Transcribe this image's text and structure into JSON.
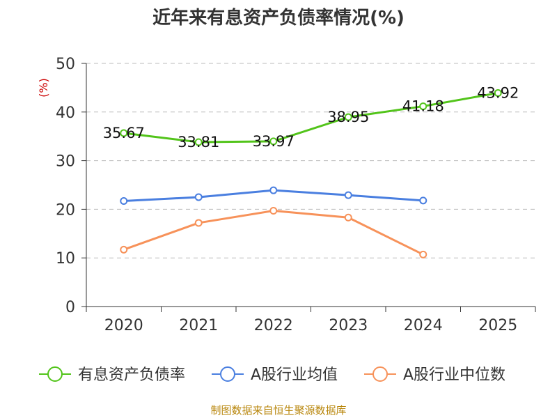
{
  "chart_data": {
    "type": "line",
    "title": "近年来有息资产负债率情况(%)",
    "ylabel": "(%)",
    "xlabel": "",
    "categories": [
      "2020",
      "2021",
      "2022",
      "2023",
      "2024",
      "2025"
    ],
    "ylim": [
      0,
      50
    ],
    "yticks": [
      "0",
      "10",
      "20",
      "30",
      "40",
      "50"
    ],
    "grid": true,
    "legend_position": "bottom",
    "series": [
      {
        "name": "有息资产负债率",
        "color": "#52c41a",
        "values": [
          35.67,
          33.81,
          33.97,
          38.95,
          41.18,
          43.92
        ],
        "labels": [
          "35.67",
          "33.81",
          "33.97",
          "38.95",
          "41.18",
          "43.92"
        ]
      },
      {
        "name": "A股行业均值",
        "color": "#4a7fe0",
        "values": [
          21.7,
          22.5,
          23.9,
          22.9,
          21.8,
          null
        ]
      },
      {
        "name": "A股行业中位数",
        "color": "#f7925a",
        "values": [
          11.7,
          17.2,
          19.7,
          18.3,
          10.7,
          null
        ]
      }
    ],
    "source": "制图数据来自恒生聚源数据库",
    "ylabel_color": "#cc0000",
    "source_color": "#b8860b"
  }
}
